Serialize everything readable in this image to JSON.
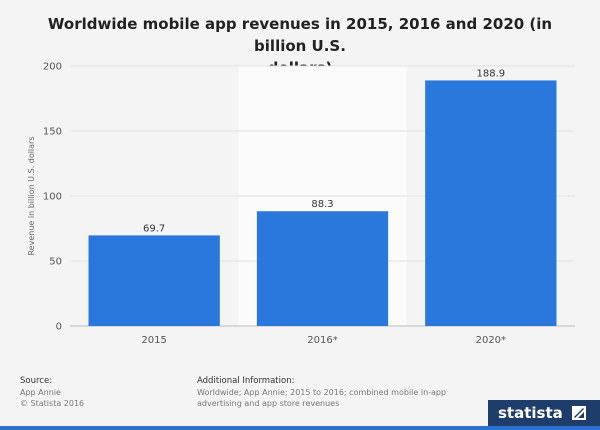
{
  "chart_data": {
    "type": "bar",
    "title": "Worldwide mobile app revenues in 2015, 2016 and 2020 (in billion U.S. dollars)",
    "title_lines": [
      "Worldwide mobile app revenues in 2015, 2016 and 2020 (in billion U.S.",
      "dollars)"
    ],
    "categories": [
      "2015",
      "2016*",
      "2020*"
    ],
    "values": [
      69.7,
      88.3,
      188.9
    ],
    "value_labels": [
      "69.7",
      "88.3",
      "188.9"
    ],
    "ylabel": "Revenue in billion U.S. dollars",
    "xlabel": "",
    "ylim": [
      0,
      200
    ],
    "yticks": [
      0,
      50,
      100,
      150,
      200
    ],
    "grid": true,
    "bar_color": "#2a78dc",
    "highlight_category": "2016*"
  },
  "footer": {
    "source_header": "Source:",
    "source_lines": [
      "App Annie",
      "© Statista 2016"
    ],
    "info_header": "Additional Information:",
    "info_lines": [
      "Worldwide; App Annie; 2015 to 2016; combined mobile in-app",
      "advertising and app store revenues"
    ]
  },
  "brand": {
    "name": "statista"
  }
}
